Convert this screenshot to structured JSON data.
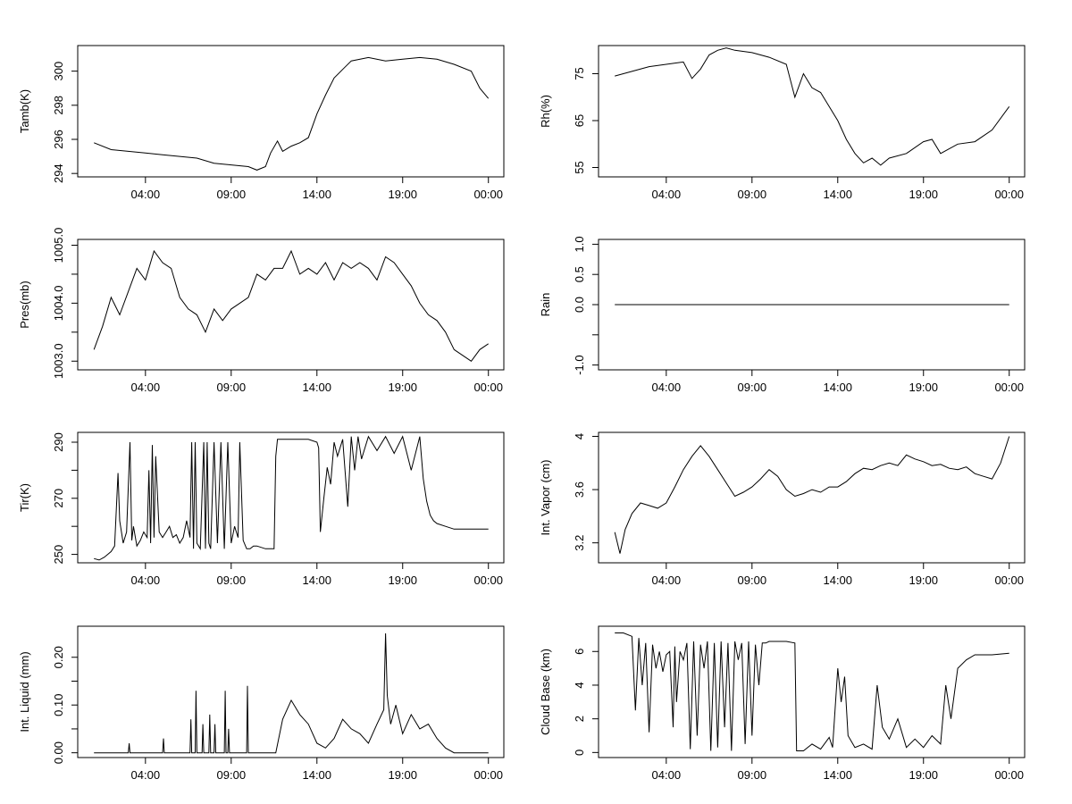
{
  "chart_data": [
    {
      "type": "line",
      "ylabel": "Tamb(K)",
      "xticks": [
        "04:00",
        "09:00",
        "14:00",
        "19:00",
        "00:00"
      ],
      "x_hours": [
        1,
        4,
        9,
        14,
        19,
        24
      ],
      "yticks": [
        294,
        296,
        298,
        300
      ],
      "ylim": [
        293.8,
        301.5
      ],
      "xlim": [
        0.05,
        24.9
      ],
      "series": [
        {
          "x": [
            1,
            2,
            3,
            4,
            5,
            6,
            7,
            8,
            9,
            10,
            10.5,
            11,
            11.3,
            11.7,
            12,
            12.5,
            13,
            13.5,
            14,
            14.5,
            15,
            15.5,
            16,
            17,
            18,
            19,
            20,
            21,
            22,
            23,
            23.5,
            24
          ],
          "y": [
            295.8,
            295.4,
            295.3,
            295.2,
            295.1,
            295.0,
            294.9,
            294.6,
            294.5,
            294.4,
            294.2,
            294.4,
            295.2,
            295.9,
            295.3,
            295.6,
            295.8,
            296.1,
            297.5,
            298.6,
            299.6,
            300.1,
            300.6,
            300.8,
            300.6,
            300.7,
            300.8,
            300.7,
            300.4,
            300.0,
            299.0,
            298.4
          ]
        }
      ]
    },
    {
      "type": "line",
      "ylabel": "Rh(%)",
      "xticks": [
        "04:00",
        "09:00",
        "14:00",
        "19:00",
        "00:00"
      ],
      "x_hours": [
        1,
        4,
        9,
        14,
        19,
        24
      ],
      "yticks": [
        55,
        65,
        75
      ],
      "ylim": [
        53,
        81
      ],
      "xlim": [
        0.05,
        24.9
      ],
      "series": [
        {
          "x": [
            1,
            2,
            3,
            4,
            5,
            5.5,
            6,
            6.5,
            7,
            7.5,
            8,
            9,
            10,
            11,
            11.5,
            12,
            12.5,
            13,
            13.5,
            14,
            14.5,
            15,
            15.5,
            16,
            16.5,
            17,
            18,
            19,
            19.5,
            20,
            21,
            22,
            23,
            24
          ],
          "y": [
            74.5,
            75.5,
            76.5,
            77,
            77.5,
            74,
            76,
            79,
            80,
            80.5,
            80,
            79.5,
            78.5,
            77,
            70,
            75,
            72,
            71,
            68,
            65,
            61,
            58,
            56,
            57,
            55.5,
            57,
            58,
            60.5,
            61,
            58,
            60,
            60.5,
            63,
            68
          ]
        }
      ]
    },
    {
      "type": "line",
      "ylabel": "Pres(mb)",
      "xticks": [
        "04:00",
        "09:00",
        "14:00",
        "19:00",
        "00:00"
      ],
      "x_hours": [
        1,
        4,
        9,
        14,
        19,
        24
      ],
      "yticks": [
        1003.0,
        1003.5,
        1004.0,
        1004.5,
        1005.0
      ],
      "yticklabels": [
        "1003.0",
        "",
        "1004.0",
        "",
        "1005.0"
      ],
      "ylim": [
        1002.85,
        1005.1
      ],
      "xlim": [
        0.05,
        24.9
      ],
      "series": [
        {
          "x": [
            1,
            1.5,
            2,
            2.5,
            3,
            3.5,
            4,
            4.5,
            5,
            5.5,
            6,
            6.5,
            7,
            7.5,
            8,
            8.5,
            9,
            9.5,
            10,
            10.5,
            11,
            11.5,
            12,
            12.5,
            13,
            13.5,
            14,
            14.5,
            15,
            15.5,
            16,
            16.5,
            17,
            17.5,
            18,
            18.5,
            19,
            19.5,
            20,
            20.5,
            21,
            21.5,
            22,
            22.5,
            23,
            23.5,
            24
          ],
          "y": [
            1003.2,
            1003.6,
            1004.1,
            1003.8,
            1004.2,
            1004.6,
            1004.4,
            1004.9,
            1004.7,
            1004.6,
            1004.1,
            1003.9,
            1003.8,
            1003.5,
            1003.9,
            1003.7,
            1003.9,
            1004.0,
            1004.1,
            1004.5,
            1004.4,
            1004.6,
            1004.6,
            1004.9,
            1004.5,
            1004.6,
            1004.5,
            1004.7,
            1004.4,
            1004.7,
            1004.6,
            1004.7,
            1004.6,
            1004.4,
            1004.8,
            1004.7,
            1004.5,
            1004.3,
            1004.0,
            1003.8,
            1003.7,
            1003.5,
            1003.2,
            1003.1,
            1003.0,
            1003.2,
            1003.3
          ]
        }
      ]
    },
    {
      "type": "line",
      "ylabel": "Rain",
      "xticks": [
        "04:00",
        "09:00",
        "14:00",
        "19:00",
        "00:00"
      ],
      "x_hours": [
        1,
        4,
        9,
        14,
        19,
        24
      ],
      "yticks": [
        -1.0,
        -0.5,
        0.0,
        0.5,
        1.0
      ],
      "yticklabels": [
        "-1.0",
        "",
        "0.0",
        "0.5",
        "1.0"
      ],
      "ylim": [
        -1.08,
        1.08
      ],
      "xlim": [
        0.05,
        24.9
      ],
      "series": [
        {
          "x": [
            1,
            24
          ],
          "y": [
            0,
            0
          ]
        }
      ]
    },
    {
      "type": "line",
      "ylabel": "Tir(K)",
      "xticks": [
        "04:00",
        "09:00",
        "14:00",
        "19:00",
        "00:00"
      ],
      "x_hours": [
        1,
        4,
        9,
        14,
        19,
        24
      ],
      "yticks": [
        250,
        260,
        270,
        280,
        290
      ],
      "yticklabels": [
        "250",
        "",
        "270",
        "",
        "290"
      ],
      "ylim": [
        247,
        293.5
      ],
      "xlim": [
        0.05,
        24.9
      ],
      "series": [
        {
          "x": [
            1,
            1.3,
            1.6,
            2.0,
            2.2,
            2.4,
            2.5,
            2.7,
            2.9,
            3.1,
            3.2,
            3.3,
            3.5,
            3.7,
            3.9,
            4.1,
            4.2,
            4.3,
            4.4,
            4.5,
            4.6,
            4.8,
            5.0,
            5.2,
            5.4,
            5.6,
            5.8,
            6.0,
            6.2,
            6.4,
            6.6,
            6.7,
            6.8,
            6.9,
            7.0,
            7.2,
            7.4,
            7.5,
            7.6,
            7.7,
            7.8,
            8.0,
            8.2,
            8.4,
            8.6,
            8.8,
            9.0,
            9.2,
            9.4,
            9.5,
            9.7,
            9.9,
            10.1,
            10.3,
            10.5,
            11.0,
            11.5,
            11.6,
            11.7,
            12.0,
            12.5,
            13.0,
            13.5,
            14.0,
            14.1,
            14.2,
            14.4,
            14.6,
            14.8,
            15.0,
            15.2,
            15.5,
            15.8,
            16.0,
            16.2,
            16.4,
            16.6,
            17.0,
            17.5,
            18.0,
            18.5,
            19.0,
            19.5,
            20.0,
            20.2,
            20.4,
            20.6,
            20.8,
            21.0,
            21.5,
            22.0,
            22.5,
            23.0,
            23.5,
            24.0
          ],
          "y": [
            248.5,
            248,
            249,
            251,
            253,
            279,
            262,
            254,
            258,
            290,
            255,
            260,
            253,
            255,
            258,
            256,
            280,
            254,
            289,
            256,
            285,
            258,
            256,
            258,
            260,
            256,
            257,
            254,
            256,
            262,
            256,
            290,
            252,
            290,
            254,
            252,
            290,
            252,
            290,
            254,
            252,
            290,
            254,
            290,
            252,
            290,
            254,
            260,
            256,
            290,
            255,
            252,
            252,
            253,
            253,
            252,
            252,
            285,
            291,
            291,
            291,
            291,
            291,
            290,
            288,
            258,
            270,
            281,
            275,
            290,
            285,
            291,
            267,
            292,
            280,
            292,
            284,
            292,
            287,
            292,
            286,
            292,
            280,
            292,
            277,
            269,
            264,
            262,
            261,
            260,
            259,
            259,
            259,
            259,
            259
          ]
        }
      ]
    },
    {
      "type": "line",
      "ylabel": "Int. Vapor (cm)",
      "xticks": [
        "04:00",
        "09:00",
        "14:00",
        "19:00",
        "00:00"
      ],
      "x_hours": [
        1,
        4,
        9,
        14,
        19,
        24
      ],
      "yticks": [
        3.2,
        3.6,
        4.0
      ],
      "ylim": [
        3.05,
        4.03
      ],
      "xlim": [
        0.05,
        24.9
      ],
      "series": [
        {
          "x": [
            1,
            1.3,
            1.6,
            2.0,
            2.5,
            3.0,
            3.5,
            4.0,
            4.5,
            5.0,
            5.5,
            6.0,
            6.5,
            7.0,
            7.5,
            8.0,
            8.5,
            9.0,
            9.5,
            10.0,
            10.5,
            11.0,
            11.5,
            12.0,
            12.5,
            13.0,
            13.5,
            14.0,
            14.5,
            15.0,
            15.5,
            16.0,
            16.5,
            17.0,
            17.5,
            18.0,
            18.5,
            19.0,
            19.5,
            20.0,
            20.5,
            21.0,
            21.5,
            22.0,
            22.5,
            23.0,
            23.5,
            24.0
          ],
          "y": [
            3.28,
            3.12,
            3.3,
            3.42,
            3.5,
            3.48,
            3.46,
            3.5,
            3.62,
            3.75,
            3.85,
            3.93,
            3.85,
            3.75,
            3.65,
            3.55,
            3.58,
            3.62,
            3.68,
            3.75,
            3.7,
            3.6,
            3.55,
            3.57,
            3.6,
            3.58,
            3.62,
            3.62,
            3.66,
            3.72,
            3.76,
            3.75,
            3.78,
            3.8,
            3.78,
            3.86,
            3.83,
            3.81,
            3.78,
            3.79,
            3.76,
            3.75,
            3.77,
            3.72,
            3.7,
            3.68,
            3.8,
            4.0
          ]
        }
      ]
    },
    {
      "type": "line",
      "ylabel": "Int. Liquid (mm)",
      "xticks": [
        "04:00",
        "09:00",
        "14:00",
        "19:00",
        "00:00"
      ],
      "x_hours": [
        1,
        4,
        9,
        14,
        19,
        24
      ],
      "yticks": [
        0.0,
        0.05,
        0.1,
        0.15,
        0.2
      ],
      "yticklabels": [
        "0.00",
        "",
        "0.10",
        "",
        "0.20"
      ],
      "ylim": [
        -0.01,
        0.265
      ],
      "xlim": [
        0.05,
        24.9
      ],
      "series": [
        {
          "x": [
            1,
            3.0,
            3.05,
            3.1,
            5.0,
            5.05,
            5.1,
            6.6,
            6.65,
            6.7,
            6.9,
            6.95,
            7.0,
            7.3,
            7.35,
            7.4,
            7.7,
            7.75,
            7.8,
            8.0,
            8.05,
            8.1,
            8.6,
            8.65,
            8.7,
            8.8,
            8.85,
            8.9,
            9.9,
            9.95,
            10.0,
            11.6,
            12.0,
            12.5,
            13.0,
            13.5,
            14.0,
            14.5,
            15.0,
            15.5,
            16.0,
            16.5,
            17.0,
            17.5,
            17.9,
            18.0,
            18.1,
            18.3,
            18.6,
            19.0,
            19.5,
            20.0,
            20.5,
            21.0,
            21.5,
            22.0,
            24.0
          ],
          "y": [
            0,
            0,
            0.02,
            0,
            0,
            0.03,
            0,
            0,
            0.07,
            0,
            0,
            0.13,
            0,
            0,
            0.06,
            0,
            0,
            0.08,
            0,
            0,
            0.06,
            0,
            0,
            0.13,
            0,
            0,
            0.05,
            0,
            0,
            0.14,
            0,
            0,
            0.07,
            0.11,
            0.08,
            0.06,
            0.02,
            0.01,
            0.03,
            0.07,
            0.05,
            0.04,
            0.02,
            0.06,
            0.09,
            0.25,
            0.12,
            0.06,
            0.1,
            0.04,
            0.08,
            0.05,
            0.06,
            0.03,
            0.01,
            0,
            0
          ]
        }
      ]
    },
    {
      "type": "line",
      "ylabel": "Cloud Base (km)",
      "xticks": [
        "04:00",
        "09:00",
        "14:00",
        "19:00",
        "00:00"
      ],
      "x_hours": [
        1,
        4,
        9,
        14,
        19,
        24
      ],
      "yticks": [
        0,
        2,
        4,
        6
      ],
      "ylim": [
        -0.3,
        7.5
      ],
      "xlim": [
        0.05,
        24.9
      ],
      "series": [
        {
          "x": [
            1,
            1.5,
            2.0,
            2.2,
            2.4,
            2.6,
            2.8,
            3.0,
            3.2,
            3.4,
            3.6,
            3.8,
            4.0,
            4.2,
            4.4,
            4.5,
            4.6,
            4.8,
            5.0,
            5.2,
            5.4,
            5.6,
            5.8,
            6.0,
            6.2,
            6.4,
            6.6,
            6.8,
            7.0,
            7.2,
            7.4,
            7.6,
            7.8,
            8.0,
            8.2,
            8.4,
            8.6,
            8.8,
            9.0,
            9.2,
            9.4,
            9.6,
            9.8,
            10.0,
            10.5,
            11.0,
            11.5,
            11.6,
            12.0,
            12.5,
            13.0,
            13.5,
            13.7,
            14.0,
            14.2,
            14.4,
            14.6,
            15.0,
            15.5,
            16.0,
            16.3,
            16.6,
            17.0,
            17.5,
            18.0,
            18.5,
            19.0,
            19.5,
            20.0,
            20.3,
            20.6,
            21.0,
            21.5,
            22.0,
            23.0,
            24.0
          ],
          "y": [
            7.1,
            7.1,
            6.9,
            2.5,
            6.8,
            4.0,
            6.5,
            1.2,
            6.4,
            5.0,
            6.0,
            4.8,
            5.8,
            6.0,
            1.5,
            6.3,
            3.0,
            6.0,
            5.5,
            6.5,
            0.2,
            6.6,
            1.0,
            6.4,
            5.0,
            6.6,
            0.1,
            6.5,
            0.3,
            6.6,
            1.5,
            6.5,
            0.1,
            6.6,
            5.5,
            6.5,
            0.5,
            6.6,
            1.0,
            6.4,
            4.0,
            6.5,
            6.5,
            6.6,
            6.6,
            6.6,
            6.5,
            0.1,
            0.1,
            0.5,
            0.2,
            0.9,
            0.3,
            5.0,
            3.0,
            4.5,
            1.0,
            0.3,
            0.5,
            0.2,
            4.0,
            1.5,
            0.8,
            2.0,
            0.3,
            0.8,
            0.3,
            1.0,
            0.5,
            4.0,
            2.0,
            5.0,
            5.5,
            5.8,
            5.8,
            5.9
          ]
        }
      ]
    }
  ]
}
